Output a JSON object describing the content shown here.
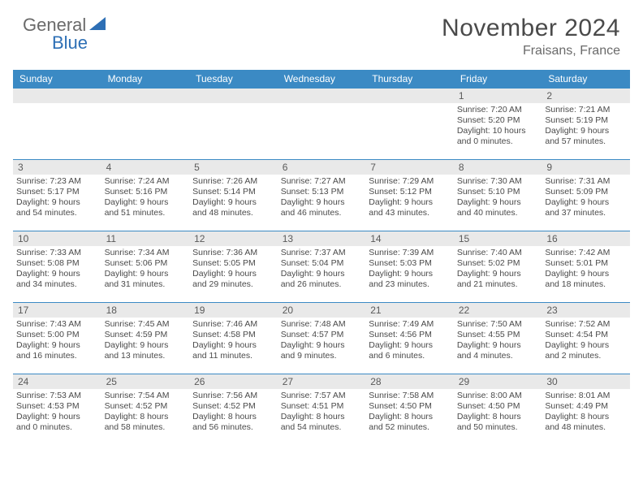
{
  "brand": {
    "part1": "General",
    "part2": "Blue"
  },
  "title": "November 2024",
  "location": "Fraisans, France",
  "colors": {
    "header_bg": "#3b8ac4",
    "header_text": "#ffffff",
    "daynum_bg": "#e9e9e9",
    "border": "#3b8ac4",
    "title_color": "#4a4a4a",
    "logo_gray": "#6a6a6a",
    "logo_blue": "#2d6fb5"
  },
  "weekdays": [
    "Sunday",
    "Monday",
    "Tuesday",
    "Wednesday",
    "Thursday",
    "Friday",
    "Saturday"
  ],
  "weeks": [
    [
      null,
      null,
      null,
      null,
      null,
      {
        "n": "1",
        "sr": "Sunrise: 7:20 AM",
        "ss": "Sunset: 5:20 PM",
        "dl1": "Daylight: 10 hours",
        "dl2": "and 0 minutes."
      },
      {
        "n": "2",
        "sr": "Sunrise: 7:21 AM",
        "ss": "Sunset: 5:19 PM",
        "dl1": "Daylight: 9 hours",
        "dl2": "and 57 minutes."
      }
    ],
    [
      {
        "n": "3",
        "sr": "Sunrise: 7:23 AM",
        "ss": "Sunset: 5:17 PM",
        "dl1": "Daylight: 9 hours",
        "dl2": "and 54 minutes."
      },
      {
        "n": "4",
        "sr": "Sunrise: 7:24 AM",
        "ss": "Sunset: 5:16 PM",
        "dl1": "Daylight: 9 hours",
        "dl2": "and 51 minutes."
      },
      {
        "n": "5",
        "sr": "Sunrise: 7:26 AM",
        "ss": "Sunset: 5:14 PM",
        "dl1": "Daylight: 9 hours",
        "dl2": "and 48 minutes."
      },
      {
        "n": "6",
        "sr": "Sunrise: 7:27 AM",
        "ss": "Sunset: 5:13 PM",
        "dl1": "Daylight: 9 hours",
        "dl2": "and 46 minutes."
      },
      {
        "n": "7",
        "sr": "Sunrise: 7:29 AM",
        "ss": "Sunset: 5:12 PM",
        "dl1": "Daylight: 9 hours",
        "dl2": "and 43 minutes."
      },
      {
        "n": "8",
        "sr": "Sunrise: 7:30 AM",
        "ss": "Sunset: 5:10 PM",
        "dl1": "Daylight: 9 hours",
        "dl2": "and 40 minutes."
      },
      {
        "n": "9",
        "sr": "Sunrise: 7:31 AM",
        "ss": "Sunset: 5:09 PM",
        "dl1": "Daylight: 9 hours",
        "dl2": "and 37 minutes."
      }
    ],
    [
      {
        "n": "10",
        "sr": "Sunrise: 7:33 AM",
        "ss": "Sunset: 5:08 PM",
        "dl1": "Daylight: 9 hours",
        "dl2": "and 34 minutes."
      },
      {
        "n": "11",
        "sr": "Sunrise: 7:34 AM",
        "ss": "Sunset: 5:06 PM",
        "dl1": "Daylight: 9 hours",
        "dl2": "and 31 minutes."
      },
      {
        "n": "12",
        "sr": "Sunrise: 7:36 AM",
        "ss": "Sunset: 5:05 PM",
        "dl1": "Daylight: 9 hours",
        "dl2": "and 29 minutes."
      },
      {
        "n": "13",
        "sr": "Sunrise: 7:37 AM",
        "ss": "Sunset: 5:04 PM",
        "dl1": "Daylight: 9 hours",
        "dl2": "and 26 minutes."
      },
      {
        "n": "14",
        "sr": "Sunrise: 7:39 AM",
        "ss": "Sunset: 5:03 PM",
        "dl1": "Daylight: 9 hours",
        "dl2": "and 23 minutes."
      },
      {
        "n": "15",
        "sr": "Sunrise: 7:40 AM",
        "ss": "Sunset: 5:02 PM",
        "dl1": "Daylight: 9 hours",
        "dl2": "and 21 minutes."
      },
      {
        "n": "16",
        "sr": "Sunrise: 7:42 AM",
        "ss": "Sunset: 5:01 PM",
        "dl1": "Daylight: 9 hours",
        "dl2": "and 18 minutes."
      }
    ],
    [
      {
        "n": "17",
        "sr": "Sunrise: 7:43 AM",
        "ss": "Sunset: 5:00 PM",
        "dl1": "Daylight: 9 hours",
        "dl2": "and 16 minutes."
      },
      {
        "n": "18",
        "sr": "Sunrise: 7:45 AM",
        "ss": "Sunset: 4:59 PM",
        "dl1": "Daylight: 9 hours",
        "dl2": "and 13 minutes."
      },
      {
        "n": "19",
        "sr": "Sunrise: 7:46 AM",
        "ss": "Sunset: 4:58 PM",
        "dl1": "Daylight: 9 hours",
        "dl2": "and 11 minutes."
      },
      {
        "n": "20",
        "sr": "Sunrise: 7:48 AM",
        "ss": "Sunset: 4:57 PM",
        "dl1": "Daylight: 9 hours",
        "dl2": "and 9 minutes."
      },
      {
        "n": "21",
        "sr": "Sunrise: 7:49 AM",
        "ss": "Sunset: 4:56 PM",
        "dl1": "Daylight: 9 hours",
        "dl2": "and 6 minutes."
      },
      {
        "n": "22",
        "sr": "Sunrise: 7:50 AM",
        "ss": "Sunset: 4:55 PM",
        "dl1": "Daylight: 9 hours",
        "dl2": "and 4 minutes."
      },
      {
        "n": "23",
        "sr": "Sunrise: 7:52 AM",
        "ss": "Sunset: 4:54 PM",
        "dl1": "Daylight: 9 hours",
        "dl2": "and 2 minutes."
      }
    ],
    [
      {
        "n": "24",
        "sr": "Sunrise: 7:53 AM",
        "ss": "Sunset: 4:53 PM",
        "dl1": "Daylight: 9 hours",
        "dl2": "and 0 minutes."
      },
      {
        "n": "25",
        "sr": "Sunrise: 7:54 AM",
        "ss": "Sunset: 4:52 PM",
        "dl1": "Daylight: 8 hours",
        "dl2": "and 58 minutes."
      },
      {
        "n": "26",
        "sr": "Sunrise: 7:56 AM",
        "ss": "Sunset: 4:52 PM",
        "dl1": "Daylight: 8 hours",
        "dl2": "and 56 minutes."
      },
      {
        "n": "27",
        "sr": "Sunrise: 7:57 AM",
        "ss": "Sunset: 4:51 PM",
        "dl1": "Daylight: 8 hours",
        "dl2": "and 54 minutes."
      },
      {
        "n": "28",
        "sr": "Sunrise: 7:58 AM",
        "ss": "Sunset: 4:50 PM",
        "dl1": "Daylight: 8 hours",
        "dl2": "and 52 minutes."
      },
      {
        "n": "29",
        "sr": "Sunrise: 8:00 AM",
        "ss": "Sunset: 4:50 PM",
        "dl1": "Daylight: 8 hours",
        "dl2": "and 50 minutes."
      },
      {
        "n": "30",
        "sr": "Sunrise: 8:01 AM",
        "ss": "Sunset: 4:49 PM",
        "dl1": "Daylight: 8 hours",
        "dl2": "and 48 minutes."
      }
    ]
  ]
}
